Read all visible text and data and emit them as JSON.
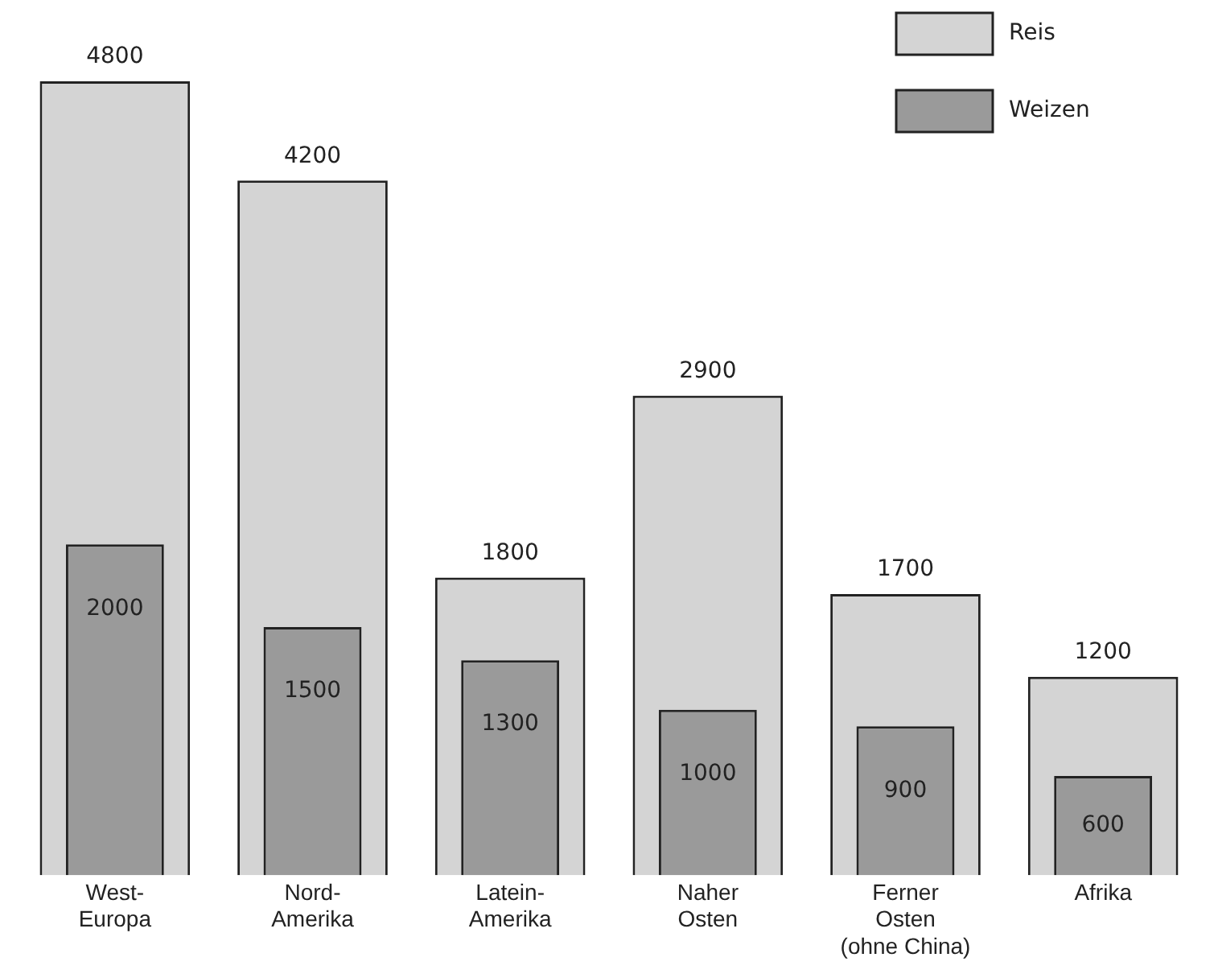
{
  "chart_data": {
    "type": "bar",
    "categories": [
      "West-\nEuropa",
      "Nord-\nAmerika",
      "Latein-\nAmerika",
      "Naher\nOsten",
      "Ferner\nOsten\n(ohne China)",
      "Afrika"
    ],
    "series": [
      {
        "name": "Reis",
        "color": "#d4d4d4",
        "values": [
          4800,
          4200,
          1800,
          2900,
          1700,
          1200
        ]
      },
      {
        "name": "Weizen",
        "color": "#9a9a9a",
        "values": [
          2000,
          1500,
          1300,
          1000,
          900,
          600
        ]
      }
    ],
    "data_labels": true,
    "legend": "top right",
    "grid": false
  }
}
